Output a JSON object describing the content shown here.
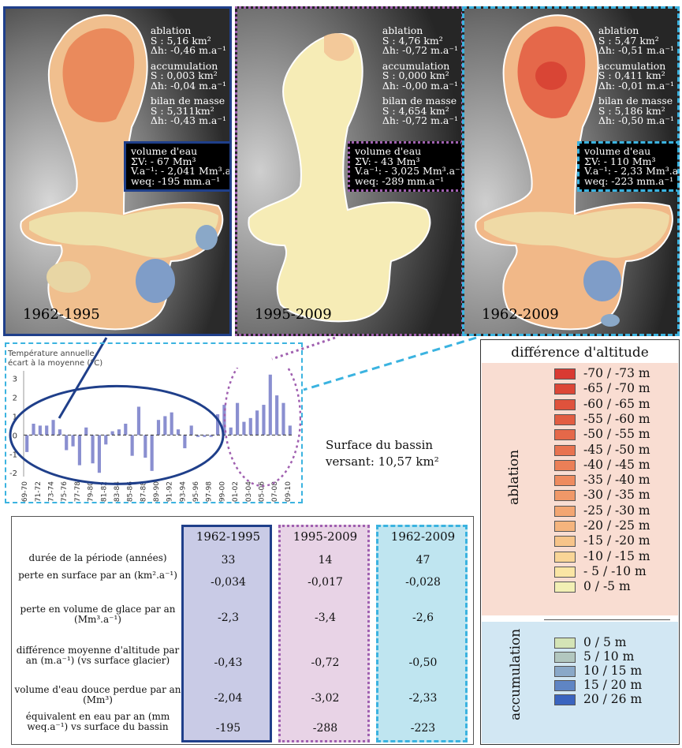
{
  "panels": [
    {
      "period": "1962-1995",
      "ablation": {
        "title": "ablation",
        "s": "S : 5,16 km²",
        "dh": "Δh: -0,46 m.a⁻¹"
      },
      "accumulation": {
        "title": "accumulation",
        "s": "S : 0,003 km²",
        "dh": "Δh: -0,04 m.a⁻¹"
      },
      "bilan": {
        "title": "bilan de masse",
        "s": "S : 5,311km²",
        "dh": "Δh: -0,43 m.a⁻¹"
      },
      "volume": {
        "title": "volume d'eau",
        "sv": "ΣV: - 67 Mm³",
        "va": "V.a⁻¹: - 2,041 Mm³.a⁻¹",
        "weq": "weq: -195 mm.a⁻¹"
      }
    },
    {
      "period": "1995-2009",
      "ablation": {
        "title": "ablation",
        "s": "S : 4,76 km²",
        "dh": "Δh: -0,72 m.a⁻¹"
      },
      "accumulation": {
        "title": "accumulation",
        "s": "S : 0,000 km²",
        "dh": "Δh: -0,00 m.a⁻¹"
      },
      "bilan": {
        "title": "bilan de masse",
        "s": "S : 4,654 km²",
        "dh": "Δh: -0,72 m.a⁻¹"
      },
      "volume": {
        "title": "volume d'eau",
        "sv": "ΣV: - 43 Mm³",
        "va": "V.a⁻¹: - 3,025 Mm³.a⁻¹",
        "weq": "weq: -289 mm.a⁻¹"
      }
    },
    {
      "period": "1962-2009",
      "ablation": {
        "title": "ablation",
        "s": "S : 5,47 km²",
        "dh": "Δh: -0,51 m.a⁻¹"
      },
      "accumulation": {
        "title": "accumulation",
        "s": "S : 0,411 km²",
        "dh": "Δh: -0,01 m.a⁻¹"
      },
      "bilan": {
        "title": "bilan de masse",
        "s": "S : 5,186 km²",
        "dh": "Δh: -0,50 m.a⁻¹"
      },
      "volume": {
        "title": "volume d'eau",
        "sv": "ΣV: - 110 Mm³",
        "va": "V.a⁻¹: - 2,33 Mm³.a⁻¹",
        "weq": "weq: -223 mm.a⁻¹"
      }
    }
  ],
  "chart_data": {
    "type": "bar",
    "title": "Température annuelle",
    "subtitle": "écart à la moyenne (°C)",
    "categories": [
      "69-70",
      "70-71",
      "71-72",
      "72-73",
      "73-74",
      "74-75",
      "75-76",
      "76-77",
      "77-78",
      "78-79",
      "79-80",
      "80-81",
      "81-82",
      "82-83",
      "83-84",
      "84-85",
      "85-86",
      "86-87",
      "87-88",
      "88-89",
      "89-90",
      "90-91",
      "91-92",
      "92-93",
      "93-94",
      "94-95",
      "95-96",
      "96-97",
      "97-98",
      "98-99",
      "99-00",
      "00-01",
      "01-02",
      "02-03",
      "03-04",
      "04-05",
      "05-06",
      "06-07",
      "07-08",
      "08-09",
      "09-10"
    ],
    "tick_labels": [
      "69-70",
      "71-72",
      "73-74",
      "75-76",
      "77-78",
      "79-80",
      "81-82",
      "83-84",
      "85-86",
      "87-88",
      "89-90",
      "91-92",
      "93-94",
      "95-96",
      "97-98",
      "99-00",
      "01-02",
      "03-04",
      "05-06",
      "07-08",
      "09-10"
    ],
    "values": [
      -0.9,
      0.6,
      0.5,
      0.5,
      0.8,
      0.3,
      -0.8,
      -0.6,
      -1.6,
      0.4,
      -1.5,
      -2.0,
      -0.5,
      0.2,
      0.3,
      0.6,
      -1.1,
      1.5,
      -1.2,
      -1.9,
      0.8,
      1.0,
      1.2,
      0.3,
      -0.7,
      0.5,
      -0.1,
      -0.1,
      -0.1,
      1.1,
      1.6,
      0.4,
      1.7,
      0.7,
      0.9,
      1.3,
      1.6,
      3.2,
      2.1,
      1.7,
      0.5
    ],
    "ylim": [
      -2.2,
      3.4
    ],
    "yticks": [
      -2,
      -1,
      0,
      1,
      2,
      3
    ],
    "color": "#8a8fd0"
  },
  "surface": {
    "line1": "Surface du bassin",
    "line2": "versant: 10,57 km²"
  },
  "table": {
    "headers": [
      "1962-1995",
      "1995-2009",
      "1962-2009"
    ],
    "rows": [
      {
        "label": "durée de la période (années)",
        "values": [
          "33",
          "14",
          "47"
        ]
      },
      {
        "label": "perte en surface par an (km².a⁻¹)",
        "values": [
          "-0,034",
          "-0,017",
          "-0,028"
        ]
      },
      {
        "label": "perte en volume de glace par an (Mm³.a⁻¹)",
        "values": [
          "-2,3",
          "-3,4",
          "-2,6"
        ]
      },
      {
        "label": "différence moyenne d'altitude par an (m.a⁻¹) (vs surface glacier)",
        "values": [
          "-0,43",
          "-0,72",
          "-0,50"
        ]
      },
      {
        "label": "volume d'eau douce perdue par an (Mm³)",
        "values": [
          "-2,04",
          "-3,02",
          "-2,33"
        ]
      },
      {
        "label": "équivalent en eau par an (mm weq.a⁻¹) vs surface du bassin",
        "values": [
          "-195",
          "-288",
          "-223"
        ]
      }
    ]
  },
  "legend": {
    "title": "différence d'altitude",
    "ablation_label": "ablation",
    "accumulation_label": "accumulation",
    "ablation": [
      {
        "label": "-70 / -73 m",
        "color": "#d93a32"
      },
      {
        "label": "-65 / -70 m",
        "color": "#dc4636"
      },
      {
        "label": "-60 / -65 m",
        "color": "#df523c"
      },
      {
        "label": "-55 / -60 m",
        "color": "#e25d42"
      },
      {
        "label": "-50 / -55 m",
        "color": "#e56849"
      },
      {
        "label": "-45 / -50 m",
        "color": "#e87350"
      },
      {
        "label": "-40 / -45 m",
        "color": "#eb7f57"
      },
      {
        "label": "-35 / -40 m",
        "color": "#ee8b5f"
      },
      {
        "label": "-30 / -35 m",
        "color": "#f09868"
      },
      {
        "label": "-25 / -30 m",
        "color": "#f3a672"
      },
      {
        "label": "-20 / -25 m",
        "color": "#f5b47d"
      },
      {
        "label": "-15 / -20 m",
        "color": "#f7c489"
      },
      {
        "label": "-10 / -15 m",
        "color": "#f9d596"
      },
      {
        "label": "- 5 / -10 m",
        "color": "#fae5a4"
      },
      {
        "label": "0 / -5 m",
        "color": "#f2efb4"
      }
    ],
    "accumulation": [
      {
        "label": "0 / 5 m",
        "color": "#d4e4b6"
      },
      {
        "label": "5 / 10 m",
        "color": "#b2c7bf"
      },
      {
        "label": "10 / 15 m",
        "color": "#8aa8c8"
      },
      {
        "label": "15 / 20 m",
        "color": "#5f85c4"
      },
      {
        "label": "20 / 26 m",
        "color": "#3a64bf"
      }
    ]
  }
}
